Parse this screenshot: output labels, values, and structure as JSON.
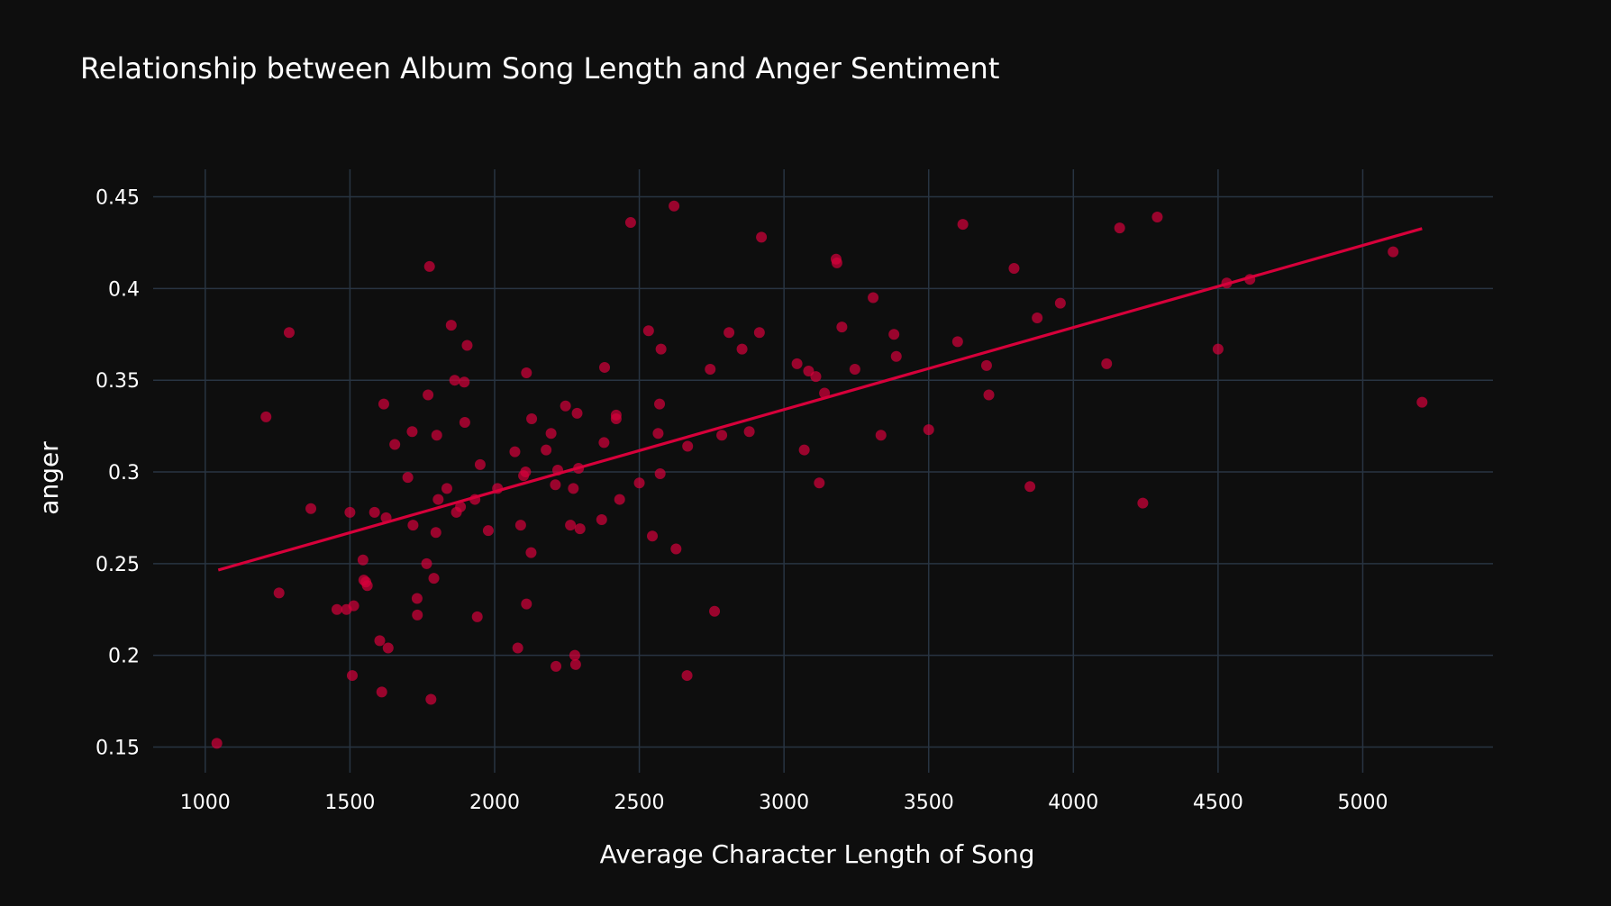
{
  "chart_data": {
    "type": "scatter",
    "title": "Relationship between Album Song Length and Anger Sentiment",
    "xlabel": "Average Character Length of Song",
    "ylabel": "anger",
    "xlim": [
      820,
      5450
    ],
    "ylim": [
      0.136,
      0.465
    ],
    "x_ticks": [
      1000,
      1500,
      2000,
      2500,
      3000,
      3500,
      4000,
      4500,
      5000
    ],
    "y_ticks": [
      0.15,
      0.2,
      0.25,
      0.3,
      0.35,
      0.4,
      0.45
    ],
    "y_tick_labels": [
      "0.15",
      "0.2",
      "0.25",
      "0.3",
      "0.35",
      "0.4",
      "0.45"
    ],
    "grid": true,
    "legend": "none",
    "colors": {
      "points": "#d6003a",
      "trendline": "#d6003a",
      "background": "#0e0e0e",
      "grid": "#283442"
    },
    "trendline": {
      "x": [
        1045,
        5205
      ],
      "y": [
        0.2465,
        0.4327
      ]
    },
    "points": [
      [
        1040,
        0.152
      ],
      [
        1210,
        0.33
      ],
      [
        1255,
        0.234
      ],
      [
        1290,
        0.376
      ],
      [
        1365,
        0.28
      ],
      [
        1455,
        0.225
      ],
      [
        1488,
        0.225
      ],
      [
        1500,
        0.278
      ],
      [
        1508,
        0.189
      ],
      [
        1513,
        0.227
      ],
      [
        1545,
        0.252
      ],
      [
        1548,
        0.241
      ],
      [
        1555,
        0.24
      ],
      [
        1560,
        0.238
      ],
      [
        1585,
        0.278
      ],
      [
        1603,
        0.208
      ],
      [
        1610,
        0.18
      ],
      [
        1617,
        0.337
      ],
      [
        1625,
        0.275
      ],
      [
        1632,
        0.204
      ],
      [
        1655,
        0.315
      ],
      [
        1700,
        0.297
      ],
      [
        1715,
        0.322
      ],
      [
        1718,
        0.271
      ],
      [
        1732,
        0.231
      ],
      [
        1733,
        0.222
      ],
      [
        1765,
        0.25
      ],
      [
        1770,
        0.342
      ],
      [
        1775,
        0.412
      ],
      [
        1780,
        0.176
      ],
      [
        1790,
        0.242
      ],
      [
        1797,
        0.267
      ],
      [
        1800,
        0.32
      ],
      [
        1805,
        0.285
      ],
      [
        1835,
        0.291
      ],
      [
        1850,
        0.38
      ],
      [
        1862,
        0.35
      ],
      [
        1868,
        0.278
      ],
      [
        1882,
        0.281
      ],
      [
        1895,
        0.349
      ],
      [
        1897,
        0.327
      ],
      [
        1905,
        0.369
      ],
      [
        1932,
        0.285
      ],
      [
        1940,
        0.221
      ],
      [
        1950,
        0.304
      ],
      [
        1978,
        0.268
      ],
      [
        2010,
        0.291
      ],
      [
        2070,
        0.311
      ],
      [
        2080,
        0.204
      ],
      [
        2090,
        0.271
      ],
      [
        2100,
        0.298
      ],
      [
        2107,
        0.3
      ],
      [
        2110,
        0.228
      ],
      [
        2110,
        0.354
      ],
      [
        2126,
        0.256
      ],
      [
        2128,
        0.329
      ],
      [
        2178,
        0.312
      ],
      [
        2195,
        0.321
      ],
      [
        2210,
        0.293
      ],
      [
        2212,
        0.194
      ],
      [
        2218,
        0.301
      ],
      [
        2245,
        0.336
      ],
      [
        2262,
        0.271
      ],
      [
        2272,
        0.291
      ],
      [
        2277,
        0.2
      ],
      [
        2280,
        0.195
      ],
      [
        2285,
        0.332
      ],
      [
        2290,
        0.302
      ],
      [
        2295,
        0.269
      ],
      [
        2370,
        0.274
      ],
      [
        2378,
        0.316
      ],
      [
        2380,
        0.357
      ],
      [
        2420,
        0.331
      ],
      [
        2420,
        0.329
      ],
      [
        2432,
        0.285
      ],
      [
        2470,
        0.436
      ],
      [
        2500,
        0.294
      ],
      [
        2532,
        0.377
      ],
      [
        2545,
        0.265
      ],
      [
        2565,
        0.321
      ],
      [
        2570,
        0.337
      ],
      [
        2572,
        0.299
      ],
      [
        2575,
        0.367
      ],
      [
        2620,
        0.445
      ],
      [
        2627,
        0.258
      ],
      [
        2665,
        0.189
      ],
      [
        2667,
        0.314
      ],
      [
        2745,
        0.356
      ],
      [
        2760,
        0.224
      ],
      [
        2785,
        0.32
      ],
      [
        2810,
        0.376
      ],
      [
        2855,
        0.367
      ],
      [
        2880,
        0.322
      ],
      [
        2915,
        0.376
      ],
      [
        2922,
        0.428
      ],
      [
        3045,
        0.359
      ],
      [
        3070,
        0.312
      ],
      [
        3085,
        0.355
      ],
      [
        3110,
        0.352
      ],
      [
        3122,
        0.294
      ],
      [
        3140,
        0.343
      ],
      [
        3180,
        0.416
      ],
      [
        3183,
        0.414
      ],
      [
        3200,
        0.379
      ],
      [
        3245,
        0.356
      ],
      [
        3308,
        0.395
      ],
      [
        3335,
        0.32
      ],
      [
        3380,
        0.375
      ],
      [
        3388,
        0.363
      ],
      [
        3500,
        0.323
      ],
      [
        3600,
        0.371
      ],
      [
        3618,
        0.435
      ],
      [
        3700,
        0.358
      ],
      [
        3708,
        0.342
      ],
      [
        3795,
        0.411
      ],
      [
        3850,
        0.292
      ],
      [
        3875,
        0.384
      ],
      [
        3955,
        0.392
      ],
      [
        4115,
        0.359
      ],
      [
        4160,
        0.433
      ],
      [
        4240,
        0.283
      ],
      [
        4290,
        0.439
      ],
      [
        4500,
        0.367
      ],
      [
        4530,
        0.403
      ],
      [
        4610,
        0.405
      ],
      [
        5105,
        0.42
      ],
      [
        5205,
        0.338
      ]
    ]
  }
}
